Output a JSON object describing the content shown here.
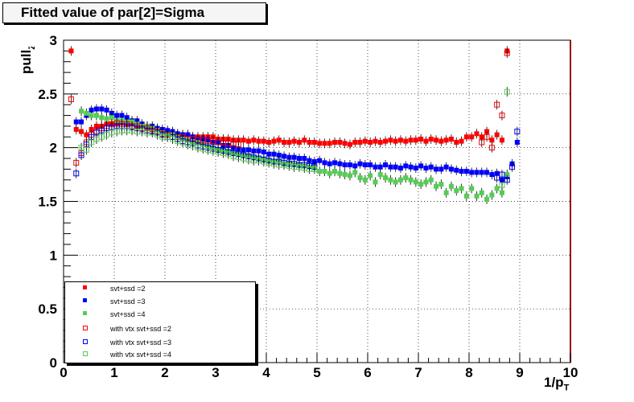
{
  "chart_data": {
    "type": "scatter",
    "title": "Fitted value of par[2]=Sigma",
    "xlabel": "1/p_T",
    "ylabel": "pull_Z",
    "xlim": [
      0,
      10
    ],
    "ylim": [
      0,
      3
    ],
    "x_ticks": [
      "0",
      "1",
      "2",
      "3",
      "4",
      "5",
      "6",
      "7",
      "8",
      "9",
      "10"
    ],
    "y_ticks": [
      "0",
      "0.5",
      "1",
      "1.5",
      "2",
      "2.5",
      "3"
    ],
    "grid": true,
    "legend_position": "bottom-left",
    "colors": {
      "red": "#ff0000",
      "blue": "#0000ff",
      "green": "#55cc55"
    },
    "series": [
      {
        "name": "svt+ssd =2",
        "marker": "filled",
        "color": "#ff0000",
        "x": [
          0.15,
          0.25,
          0.35,
          0.45,
          0.55,
          0.65,
          0.75,
          0.85,
          0.95,
          1.05,
          1.15,
          1.25,
          1.35,
          1.45,
          1.55,
          1.65,
          1.75,
          1.85,
          1.95,
          2.05,
          2.15,
          2.25,
          2.35,
          2.45,
          2.55,
          2.65,
          2.75,
          2.85,
          2.95,
          3.05,
          3.15,
          3.25,
          3.35,
          3.45,
          3.55,
          3.65,
          3.75,
          3.85,
          3.95,
          4.05,
          4.15,
          4.25,
          4.35,
          4.45,
          4.55,
          4.65,
          4.75,
          4.85,
          4.95,
          5.05,
          5.15,
          5.25,
          5.35,
          5.45,
          5.55,
          5.65,
          5.75,
          5.85,
          5.95,
          6.05,
          6.15,
          6.25,
          6.35,
          6.45,
          6.55,
          6.65,
          6.75,
          6.85,
          6.95,
          7.05,
          7.15,
          7.25,
          7.35,
          7.45,
          7.55,
          7.65,
          7.75,
          7.85,
          7.95,
          8.05,
          8.15,
          8.25,
          8.35,
          8.45,
          8.55,
          8.65,
          8.75
        ],
        "y": [
          2.9,
          2.17,
          2.15,
          2.12,
          2.17,
          2.2,
          2.2,
          2.22,
          2.22,
          2.22,
          2.23,
          2.22,
          2.22,
          2.2,
          2.2,
          2.18,
          2.17,
          2.17,
          2.15,
          2.15,
          2.13,
          2.12,
          2.12,
          2.12,
          2.1,
          2.1,
          2.1,
          2.1,
          2.1,
          2.08,
          2.08,
          2.08,
          2.07,
          2.07,
          2.07,
          2.06,
          2.07,
          2.06,
          2.06,
          2.05,
          2.06,
          2.07,
          2.05,
          2.05,
          2.06,
          2.05,
          2.07,
          2.05,
          2.05,
          2.04,
          2.04,
          2.04,
          2.05,
          2.05,
          2.04,
          2.03,
          2.05,
          2.05,
          2.06,
          2.05,
          2.06,
          2.05,
          2.06,
          2.07,
          2.06,
          2.07,
          2.06,
          2.07,
          2.07,
          2.08,
          2.06,
          2.08,
          2.07,
          2.06,
          2.07,
          2.08,
          2.05,
          2.06,
          2.1,
          2.1,
          2.13,
          2.1,
          2.15,
          2.07,
          2.12,
          2.07,
          2.9
        ]
      },
      {
        "name": "svt+ssd =3",
        "marker": "filled",
        "color": "#0000ff",
        "x": [
          0.25,
          0.35,
          0.45,
          0.55,
          0.65,
          0.75,
          0.85,
          0.95,
          1.05,
          1.15,
          1.25,
          1.35,
          1.45,
          1.55,
          1.65,
          1.75,
          1.85,
          1.95,
          2.05,
          2.15,
          2.25,
          2.35,
          2.45,
          2.55,
          2.65,
          2.75,
          2.85,
          2.95,
          3.05,
          3.15,
          3.25,
          3.35,
          3.45,
          3.55,
          3.65,
          3.75,
          3.85,
          3.95,
          4.05,
          4.15,
          4.25,
          4.35,
          4.45,
          4.55,
          4.65,
          4.75,
          4.85,
          4.95,
          5.05,
          5.15,
          5.25,
          5.35,
          5.45,
          5.55,
          5.65,
          5.75,
          5.85,
          5.95,
          6.05,
          6.15,
          6.25,
          6.35,
          6.45,
          6.55,
          6.65,
          6.75,
          6.85,
          6.95,
          7.05,
          7.15,
          7.25,
          7.35,
          7.45,
          7.55,
          7.65,
          7.75,
          7.85,
          7.95,
          8.05,
          8.15,
          8.25,
          8.35,
          8.45,
          8.55,
          8.65,
          8.75,
          8.85,
          8.95
        ],
        "y": [
          2.24,
          2.24,
          2.3,
          2.35,
          2.36,
          2.36,
          2.35,
          2.32,
          2.3,
          2.3,
          2.28,
          2.25,
          2.25,
          2.22,
          2.2,
          2.2,
          2.18,
          2.17,
          2.16,
          2.15,
          2.13,
          2.12,
          2.12,
          2.1,
          2.08,
          2.08,
          2.07,
          2.05,
          2.05,
          2.02,
          2.02,
          2.0,
          1.99,
          1.98,
          1.98,
          1.97,
          1.97,
          1.96,
          1.94,
          1.94,
          1.93,
          1.92,
          1.91,
          1.91,
          1.9,
          1.9,
          1.88,
          1.87,
          1.88,
          1.86,
          1.85,
          1.86,
          1.85,
          1.84,
          1.84,
          1.83,
          1.85,
          1.84,
          1.84,
          1.82,
          1.82,
          1.84,
          1.82,
          1.82,
          1.81,
          1.83,
          1.82,
          1.81,
          1.83,
          1.81,
          1.82,
          1.8,
          1.8,
          1.82,
          1.8,
          1.79,
          1.78,
          1.78,
          1.77,
          1.77,
          1.77,
          1.77,
          1.75,
          1.76,
          1.7,
          1.73,
          1.85,
          2.05
        ]
      },
      {
        "name": "svt+ssd =4",
        "marker": "filled",
        "color": "#55cc55",
        "x": [
          0.35,
          0.45,
          0.55,
          0.65,
          0.75,
          0.85,
          0.95,
          1.05,
          1.15,
          1.25,
          1.35,
          1.45,
          1.55,
          1.65,
          1.75,
          1.85,
          1.95,
          2.05,
          2.15,
          2.25,
          2.35,
          2.45,
          2.55,
          2.65,
          2.75,
          2.85,
          2.95,
          3.05,
          3.15,
          3.25,
          3.35,
          3.45,
          3.55,
          3.65,
          3.75,
          3.85,
          3.95,
          4.05,
          4.15,
          4.25,
          4.35,
          4.45,
          4.55,
          4.65,
          4.75,
          4.85,
          4.95,
          5.05,
          5.15,
          5.25,
          5.35,
          5.45,
          5.55,
          5.65,
          5.75,
          5.85,
          5.95,
          6.05,
          6.15,
          6.25,
          6.35,
          6.45,
          6.55,
          6.65,
          6.75,
          6.85,
          6.95,
          7.05,
          7.15,
          7.25,
          7.35,
          7.45,
          7.55,
          7.65,
          7.75,
          7.85,
          7.95,
          8.05,
          8.15,
          8.25,
          8.35,
          8.45,
          8.55,
          8.65,
          8.75
        ],
        "y": [
          2.34,
          2.32,
          2.3,
          2.3,
          2.28,
          2.27,
          2.28,
          2.25,
          2.25,
          2.24,
          2.24,
          2.22,
          2.2,
          2.2,
          2.18,
          2.16,
          2.14,
          2.12,
          2.12,
          2.1,
          2.08,
          2.07,
          2.05,
          2.05,
          2.03,
          2.01,
          2.0,
          1.98,
          1.97,
          1.96,
          1.95,
          1.94,
          1.93,
          1.92,
          1.91,
          1.9,
          1.89,
          1.88,
          1.87,
          1.88,
          1.85,
          1.86,
          1.84,
          1.84,
          1.83,
          1.82,
          1.82,
          1.78,
          1.78,
          1.76,
          1.78,
          1.76,
          1.75,
          1.74,
          1.77,
          1.72,
          1.7,
          1.74,
          1.68,
          1.75,
          1.72,
          1.7,
          1.68,
          1.7,
          1.72,
          1.7,
          1.68,
          1.66,
          1.68,
          1.7,
          1.64,
          1.66,
          1.58,
          1.64,
          1.6,
          1.62,
          1.55,
          1.62,
          1.55,
          1.58,
          1.52,
          1.56,
          1.62,
          1.58,
          1.75
        ]
      },
      {
        "name": "with vtx svt+ssd =2",
        "marker": "open",
        "color": "#ff0000",
        "x": [
          0.15,
          0.25,
          0.35,
          0.45,
          0.55,
          0.65,
          0.75,
          0.85,
          0.95,
          1.05,
          1.15,
          1.25,
          1.35,
          1.45,
          1.55,
          1.65,
          1.75,
          1.85,
          1.95,
          2.05,
          2.15,
          2.25,
          2.35,
          2.45,
          2.55,
          2.65,
          2.75,
          2.85,
          2.95,
          3.05,
          3.15,
          3.25,
          3.35,
          3.45,
          8.25,
          8.35,
          8.45,
          8.55,
          8.65,
          8.75
        ],
        "y": [
          2.45,
          1.86,
          1.95,
          2.05,
          2.12,
          2.15,
          2.18,
          2.2,
          2.22,
          2.23,
          2.22,
          2.22,
          2.2,
          2.2,
          2.18,
          2.18,
          2.16,
          2.15,
          2.13,
          2.12,
          2.1,
          2.1,
          2.1,
          2.08,
          2.08,
          2.07,
          2.07,
          2.06,
          2.06,
          2.05,
          2.05,
          2.04,
          2.04,
          2.03,
          2.05,
          2.1,
          2.0,
          2.4,
          2.3,
          2.88
        ]
      },
      {
        "name": "with vtx svt+ssd =3",
        "marker": "open",
        "color": "#0000ff",
        "x": [
          0.25,
          0.35,
          0.45,
          0.55,
          0.65,
          0.75,
          0.85,
          0.95,
          1.05,
          1.15,
          1.25,
          1.35,
          1.45,
          1.55,
          1.65,
          1.75,
          1.85,
          1.95,
          2.05,
          2.15,
          2.25,
          2.35,
          2.45,
          2.55,
          2.65,
          2.75,
          2.85,
          2.95,
          3.05,
          3.15,
          3.25,
          3.35,
          3.45,
          3.55,
          3.65,
          3.75,
          3.85,
          3.95,
          4.05,
          4.15,
          4.25,
          4.35,
          4.45,
          4.55,
          4.65,
          4.75,
          4.85,
          4.95,
          8.55,
          8.65,
          8.75,
          8.85,
          8.95
        ],
        "y": [
          1.76,
          1.93,
          2.03,
          2.1,
          2.14,
          2.16,
          2.18,
          2.19,
          2.2,
          2.2,
          2.2,
          2.19,
          2.18,
          2.17,
          2.16,
          2.15,
          2.14,
          2.12,
          2.1,
          2.1,
          2.08,
          2.06,
          2.05,
          2.04,
          2.02,
          2.01,
          2.0,
          1.99,
          1.98,
          1.97,
          1.96,
          1.95,
          1.94,
          1.93,
          1.92,
          1.91,
          1.9,
          1.89,
          1.88,
          1.87,
          1.87,
          1.86,
          1.85,
          1.85,
          1.84,
          1.84,
          1.83,
          1.82,
          1.72,
          1.75,
          1.7,
          1.82,
          2.15
        ]
      },
      {
        "name": "with vtx svt+ssd =4",
        "marker": "open",
        "color": "#55cc55",
        "x": [
          0.35,
          0.45,
          0.55,
          0.65,
          0.75,
          0.85,
          0.95,
          1.05,
          1.15,
          1.25,
          1.35,
          1.45,
          1.55,
          1.65,
          1.75,
          1.85,
          1.95,
          2.05,
          2.15,
          2.25,
          2.35,
          2.45,
          2.55,
          2.65,
          2.75,
          2.85,
          2.95,
          3.05,
          3.15,
          3.25,
          3.35,
          3.45,
          3.55,
          3.65,
          3.75,
          3.85,
          3.95,
          4.05,
          4.15,
          4.25,
          4.35,
          4.45,
          4.55,
          4.65,
          4.75,
          4.85,
          4.95,
          8.65,
          8.75
        ],
        "y": [
          2.0,
          1.98,
          2.05,
          2.08,
          2.1,
          2.12,
          2.14,
          2.15,
          2.16,
          2.16,
          2.16,
          2.15,
          2.15,
          2.14,
          2.14,
          2.12,
          2.1,
          2.1,
          2.08,
          2.06,
          2.05,
          2.03,
          2.02,
          2.0,
          1.99,
          1.98,
          1.97,
          1.96,
          1.95,
          1.94,
          1.92,
          1.91,
          1.9,
          1.89,
          1.88,
          1.88,
          1.87,
          1.86,
          1.85,
          1.84,
          1.84,
          1.83,
          1.82,
          1.82,
          1.81,
          1.8,
          1.8,
          1.65,
          2.52
        ]
      }
    ]
  }
}
